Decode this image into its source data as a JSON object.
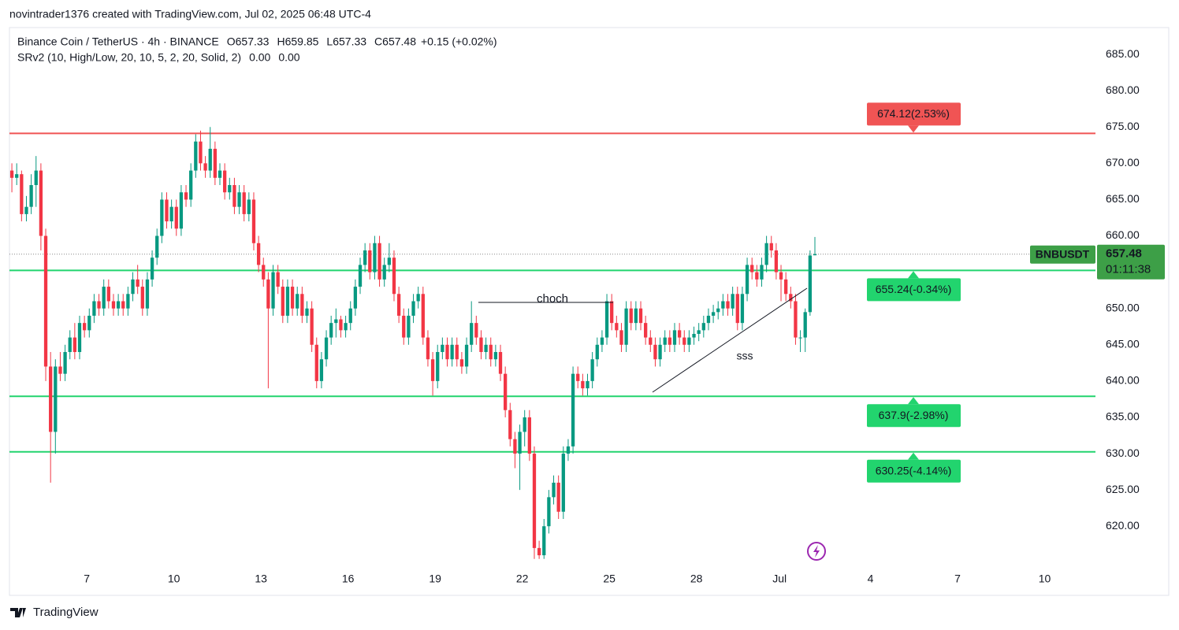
{
  "header": {
    "credit": "novintrader1376 created with TradingView.com, Jul 02, 2025 06:48 UTC-4",
    "footer": "TradingView"
  },
  "chart_data": {
    "type": "candlestick",
    "title": "Binance Coin / TetherUS · 4h · BINANCE",
    "ohlc": [
      {
        "key": "O",
        "value": 657.33
      },
      {
        "key": "H",
        "value": 659.85
      },
      {
        "key": "L",
        "value": 657.33
      },
      {
        "key": "C",
        "value": 657.48
      }
    ],
    "change": "+0.15 (+0.02%)",
    "indicator": {
      "name": "SRv2 (10, High/Low, 20, 10, 5, 2, 20, Solid, 2)",
      "values": [
        "0.00",
        "0.00"
      ]
    },
    "up_color": "#089981",
    "down_color": "#f23645",
    "candles": [
      [
        669,
        670,
        666,
        668
      ],
      [
        668,
        670,
        667,
        668.5
      ],
      [
        668.5,
        669,
        662,
        663
      ],
      [
        663,
        665.5,
        662,
        664
      ],
      [
        664,
        668.5,
        663,
        667
      ],
      [
        667,
        671,
        664,
        669
      ],
      [
        669,
        670,
        658,
        660
      ],
      [
        660,
        661,
        640,
        642
      ],
      [
        642,
        644,
        626,
        633
      ],
      [
        633,
        643,
        630,
        642
      ],
      [
        642,
        644,
        640,
        641
      ],
      [
        641,
        645,
        640,
        644
      ],
      [
        644,
        647,
        643,
        646
      ],
      [
        646,
        648,
        643,
        644
      ],
      [
        644,
        649,
        643,
        648
      ],
      [
        648,
        649,
        646,
        647
      ],
      [
        647,
        650,
        646,
        649
      ],
      [
        649,
        652,
        648,
        651
      ],
      [
        651,
        652,
        649,
        650
      ],
      [
        650,
        654,
        649,
        653
      ],
      [
        653,
        654,
        650,
        651
      ],
      [
        651,
        652,
        649,
        650
      ],
      [
        650,
        652,
        649,
        651
      ],
      [
        651,
        652,
        649,
        650
      ],
      [
        650,
        653,
        649,
        652
      ],
      [
        652,
        655,
        651,
        654
      ],
      [
        654,
        656,
        652,
        653
      ],
      [
        653,
        654,
        649,
        650
      ],
      [
        650,
        655,
        649,
        654
      ],
      [
        654,
        658,
        653,
        657
      ],
      [
        657,
        661,
        656,
        660
      ],
      [
        660,
        666,
        659,
        665
      ],
      [
        665,
        666,
        661,
        662
      ],
      [
        662,
        665,
        661,
        664
      ],
      [
        664,
        665,
        660,
        661
      ],
      [
        661,
        667,
        660,
        666
      ],
      [
        666,
        667,
        664,
        665
      ],
      [
        665,
        670,
        664,
        669
      ],
      [
        669,
        674,
        668,
        673
      ],
      [
        673,
        674.5,
        669,
        670
      ],
      [
        670,
        671,
        668,
        669
      ],
      [
        669,
        675,
        668,
        672
      ],
      [
        672,
        673,
        667,
        668
      ],
      [
        668,
        670,
        667,
        669
      ],
      [
        669,
        670,
        665,
        666
      ],
      [
        666,
        668,
        665,
        667
      ],
      [
        667,
        668,
        663,
        664
      ],
      [
        664,
        667,
        663,
        666
      ],
      [
        666,
        667,
        662,
        663
      ],
      [
        663,
        666,
        662,
        665
      ],
      [
        665,
        666,
        658,
        659
      ],
      [
        659,
        660,
        655,
        656
      ],
      [
        656,
        657,
        653,
        654
      ],
      [
        654,
        655,
        639,
        650
      ],
      [
        650,
        656,
        649,
        655
      ],
      [
        655,
        656,
        652,
        653
      ],
      [
        653,
        654,
        648,
        649
      ],
      [
        649,
        654,
        648,
        653
      ],
      [
        653,
        654,
        649,
        650
      ],
      [
        650,
        653,
        649,
        652
      ],
      [
        652,
        653,
        648,
        649
      ],
      [
        649,
        651,
        648,
        650
      ],
      [
        650,
        651,
        644,
        645
      ],
      [
        645,
        646,
        639,
        640
      ],
      [
        640,
        644,
        639,
        643
      ],
      [
        643,
        647,
        642,
        646
      ],
      [
        646,
        649,
        645,
        648
      ],
      [
        648,
        650,
        646,
        648.5
      ],
      [
        648.5,
        649,
        646,
        647
      ],
      [
        647,
        649,
        646,
        648
      ],
      [
        648,
        651,
        647,
        650
      ],
      [
        650,
        654,
        649,
        653
      ],
      [
        653,
        657,
        652,
        656
      ],
      [
        656,
        659,
        655,
        658
      ],
      [
        658,
        659,
        654,
        655
      ],
      [
        655,
        660,
        654,
        659
      ],
      [
        659,
        660,
        653,
        654
      ],
      [
        654,
        657,
        653,
        656
      ],
      [
        656,
        659,
        655,
        657
      ],
      [
        657,
        658,
        651,
        652
      ],
      [
        652,
        653,
        648,
        649
      ],
      [
        649,
        650,
        645,
        646
      ],
      [
        646,
        650,
        645,
        649
      ],
      [
        649,
        652,
        648,
        651
      ],
      [
        651,
        653,
        650,
        652
      ],
      [
        652,
        653,
        645,
        646
      ],
      [
        646,
        647,
        642,
        643
      ],
      [
        643,
        644,
        638,
        640
      ],
      [
        640,
        645,
        639,
        644
      ],
      [
        644,
        646,
        643,
        645
      ],
      [
        645,
        646,
        642,
        643
      ],
      [
        643,
        646,
        642,
        645
      ],
      [
        645,
        646,
        642,
        643
      ],
      [
        643,
        644,
        641,
        642
      ],
      [
        642,
        646,
        641,
        645
      ],
      [
        645,
        651,
        644,
        648
      ],
      [
        648,
        649,
        645,
        646
      ],
      [
        646,
        647,
        643,
        644
      ],
      [
        644,
        646,
        643,
        645
      ],
      [
        645,
        646,
        642,
        643
      ],
      [
        643,
        645,
        642,
        644
      ],
      [
        644,
        645,
        640,
        641
      ],
      [
        641,
        642,
        635,
        636
      ],
      [
        636,
        637,
        631,
        632
      ],
      [
        632,
        633,
        628,
        630
      ],
      [
        630,
        634,
        625,
        633
      ],
      [
        633,
        636,
        631,
        635
      ],
      [
        635,
        636,
        629,
        630
      ],
      [
        630,
        631,
        615.5,
        617
      ],
      [
        617,
        618,
        615.5,
        616
      ],
      [
        616,
        621,
        615.5,
        620
      ],
      [
        620,
        625,
        619,
        624
      ],
      [
        624,
        627,
        623,
        626
      ],
      [
        626,
        627,
        621,
        622
      ],
      [
        622,
        631,
        621,
        630
      ],
      [
        630,
        632,
        629,
        631
      ],
      [
        631,
        642,
        630,
        641
      ],
      [
        641,
        642,
        639,
        640
      ],
      [
        640,
        641,
        638,
        639
      ],
      [
        639,
        641,
        638,
        640
      ],
      [
        640,
        644,
        639,
        643
      ],
      [
        643,
        646,
        642,
        645
      ],
      [
        645,
        647,
        644,
        646
      ],
      [
        646,
        652,
        645,
        651
      ],
      [
        651,
        652,
        647,
        648
      ],
      [
        648,
        649,
        646,
        647
      ],
      [
        647,
        648,
        644,
        645
      ],
      [
        645,
        651,
        644,
        650
      ],
      [
        650,
        651,
        647,
        648
      ],
      [
        648,
        651,
        647,
        650
      ],
      [
        650,
        651,
        647,
        648
      ],
      [
        648,
        649,
        645,
        646
      ],
      [
        646,
        647,
        644,
        645
      ],
      [
        645,
        646,
        642,
        643
      ],
      [
        643,
        646,
        642,
        645
      ],
      [
        645,
        647,
        644,
        646
      ],
      [
        646,
        647,
        644,
        645
      ],
      [
        645,
        648,
        644,
        647
      ],
      [
        647,
        648,
        645,
        646
      ],
      [
        646,
        647,
        644,
        645
      ],
      [
        645,
        647,
        644,
        646
      ],
      [
        646,
        647.5,
        645,
        646.5
      ],
      [
        646.5,
        648,
        645.5,
        647
      ],
      [
        647,
        649,
        646,
        648
      ],
      [
        648,
        650,
        647,
        649
      ],
      [
        649,
        650.5,
        648,
        649.5
      ],
      [
        649.5,
        651,
        648.5,
        650
      ],
      [
        650,
        652,
        649,
        651
      ],
      [
        651,
        652,
        649,
        650
      ],
      [
        650,
        653,
        649,
        652
      ],
      [
        652,
        653,
        647,
        648
      ],
      [
        648,
        653,
        647,
        652
      ],
      [
        652,
        657,
        651,
        656
      ],
      [
        656,
        657,
        654,
        655
      ],
      [
        655,
        656,
        653,
        654
      ],
      [
        654,
        657,
        653,
        656
      ],
      [
        656,
        660,
        655,
        659
      ],
      [
        659,
        660,
        657,
        658
      ],
      [
        658,
        659,
        654,
        655
      ],
      [
        655,
        656,
        651,
        654
      ],
      [
        654,
        655,
        651,
        652
      ],
      [
        652,
        653,
        650,
        651
      ],
      [
        651,
        652,
        645,
        646
      ],
      [
        646,
        647,
        644,
        646
      ],
      [
        646,
        650,
        644,
        649.5
      ],
      [
        649.5,
        658,
        649,
        657.3
      ],
      [
        657.33,
        659.85,
        657.33,
        657.48
      ]
    ],
    "xlim": [
      -0.5,
      224
    ],
    "xticks": [
      {
        "value": 15.5,
        "label": "7"
      },
      {
        "value": 33.5,
        "label": "10"
      },
      {
        "value": 51.5,
        "label": "13"
      },
      {
        "value": 69.5,
        "label": "16"
      },
      {
        "value": 87.5,
        "label": "19"
      },
      {
        "value": 105.5,
        "label": "22"
      },
      {
        "value": 123.5,
        "label": "25"
      },
      {
        "value": 141.5,
        "label": "28"
      },
      {
        "value": 158.7,
        "label": "Jul"
      },
      {
        "value": 177.5,
        "label": "4"
      },
      {
        "value": 195.5,
        "label": "7"
      },
      {
        "value": 213.5,
        "label": "10"
      }
    ],
    "ylim": [
      614.6,
      688.7
    ],
    "yticks": [
      {
        "value": 620,
        "label": "620.00"
      },
      {
        "value": 625,
        "label": "625.00"
      },
      {
        "value": 630,
        "label": "630.00"
      },
      {
        "value": 635,
        "label": "635.00"
      },
      {
        "value": 640,
        "label": "640.00"
      },
      {
        "value": 645,
        "label": "645.00"
      },
      {
        "value": 650,
        "label": "650.00"
      },
      {
        "value": 655,
        "label": "655.00"
      },
      {
        "value": 660,
        "label": "660.00"
      },
      {
        "value": 665,
        "label": "665.00"
      },
      {
        "value": 670,
        "label": "670.00"
      },
      {
        "value": 675,
        "label": "675.00"
      },
      {
        "value": 680,
        "label": "680.00"
      },
      {
        "value": 685,
        "label": "685.00"
      }
    ],
    "levels": [
      {
        "value": 674.12,
        "label": "674.12(2.53%)",
        "color": "#f05454"
      },
      {
        "value": 655.24,
        "label": "655.24(-0.34%)",
        "color": "#22d46e"
      },
      {
        "value": 637.9,
        "label": "637.9(-2.98%)",
        "color": "#22d46e"
      },
      {
        "value": 630.25,
        "label": "630.25(-4.14%)",
        "color": "#22d46e"
      }
    ],
    "last_price": {
      "symbol": "BNBUSDT",
      "price": 657.48,
      "countdown": "01:11:38",
      "color": "#3d9f47"
    },
    "annotations": [
      "choch",
      "sss"
    ]
  }
}
